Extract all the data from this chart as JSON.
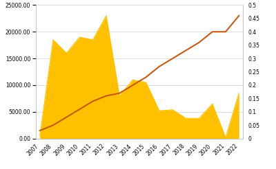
{
  "years": [
    2007,
    2008,
    2009,
    2010,
    2011,
    2012,
    2013,
    2014,
    2015,
    2016,
    2017,
    2018,
    2019,
    2020,
    2021,
    2022
  ],
  "bar_values": [
    500,
    18500,
    16000,
    19000,
    18500,
    23000,
    8000,
    11000,
    10500,
    5200,
    5400,
    3800,
    3800,
    6500,
    200,
    8500
  ],
  "line_values": [
    0.03,
    0.05,
    0.08,
    0.11,
    0.14,
    0.16,
    0.17,
    0.2,
    0.23,
    0.27,
    0.3,
    0.33,
    0.36,
    0.4,
    0.4,
    0.46
  ],
  "bar_color": "#FFC000",
  "line_color": "#C55A11",
  "left_ylim": [
    0,
    25000
  ],
  "right_ylim": [
    0,
    0.5
  ],
  "left_yticks": [
    0,
    5000,
    10000,
    15000,
    20000,
    25000
  ],
  "right_yticks": [
    0,
    0.05,
    0.1,
    0.15,
    0.2,
    0.25,
    0.3,
    0.35,
    0.4,
    0.45,
    0.5
  ],
  "left_yticklabels": [
    "0.00",
    "5000.00",
    "10000.00",
    "15000.00",
    "20000.00",
    "25000.00"
  ],
  "right_yticklabels": [
    "0",
    "0.05",
    "0.1",
    "0.15",
    "0.2",
    "0.25",
    "0.3",
    "0.35",
    "0.4",
    "0.45",
    "0.5"
  ],
  "background_color": "#FFFFFF",
  "grid_color": "#D0D0D0",
  "tick_fontsize": 5.5,
  "line_width": 1.5,
  "spine_color": "#AAAAAA"
}
